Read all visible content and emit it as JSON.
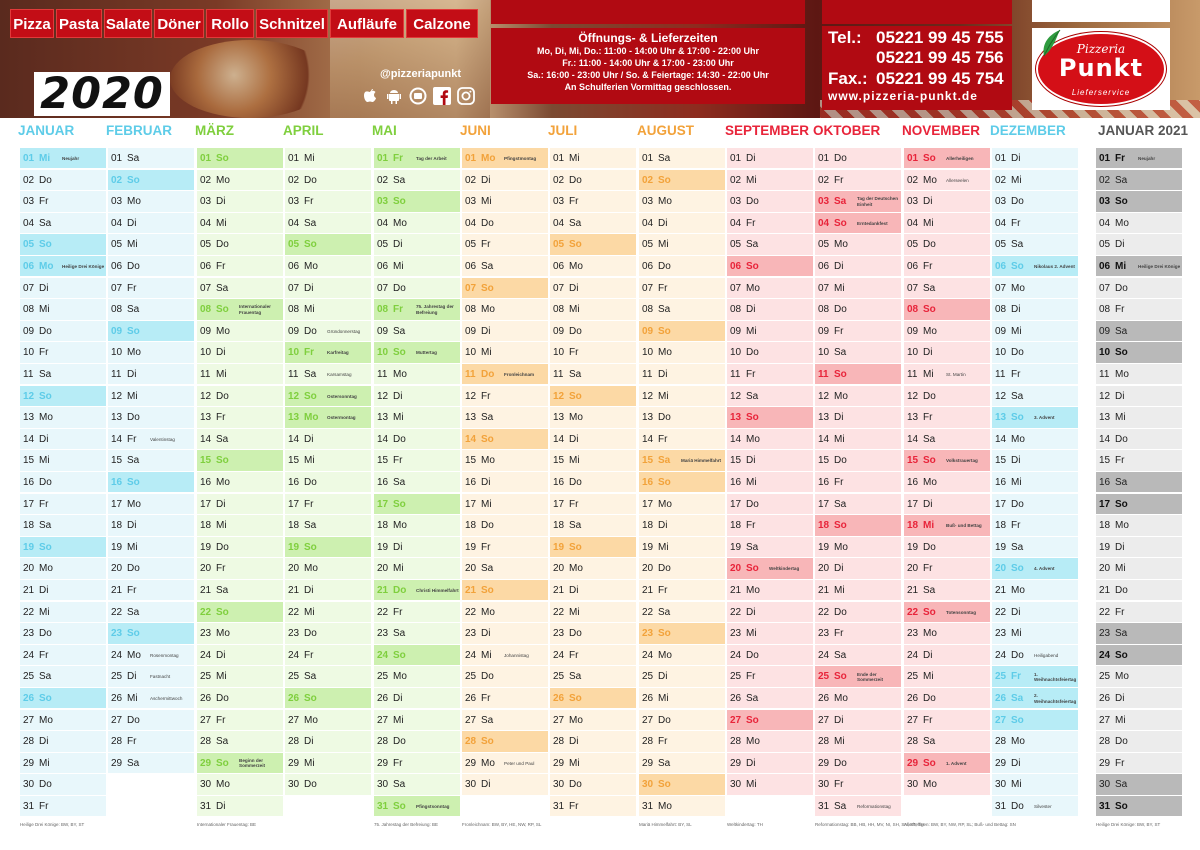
{
  "header": {
    "categories": [
      "Pizza",
      "Pasta",
      "Salate",
      "Döner",
      "Rollo",
      "Schnitzel",
      "Aufläufe",
      "Calzone"
    ],
    "year": "2020",
    "social_handle": "@pizzeriapunkt",
    "social_icons": [
      "apple-icon",
      "android-icon",
      "roundcube-icon",
      "facebook-icon",
      "instagram-icon"
    ],
    "hours": {
      "title": "Öffnungs- & Lieferzeiten",
      "lines": [
        "Mo, Di, Mi, Do.: 11:00 - 14:00 Uhr & 17:00 - 22:00 Uhr",
        "Fr.: 11:00 - 14:00 Uhr & 17:00 - 23:00 Uhr",
        "Sa.: 16:00 - 23:00 Uhr / So. & Feiertage: 14:30 - 22:00 Uhr",
        "An Schulferien Vormittag geschlossen."
      ]
    },
    "contact": {
      "tel_label": "Tel.:",
      "tel1": "05221 99 45 755",
      "tel2": "05221 99 45 756",
      "fax_label": "Fax.:",
      "fax": "05221 99 45 754",
      "web": "www.pizzeria-punkt.de"
    },
    "logo": {
      "top": "Pizzeria",
      "main": "Punkt",
      "bottom": "Lieferservice"
    }
  },
  "colors": {
    "brand_red": "#b10a12",
    "category_red": "#c30d16"
  },
  "calendar": {
    "months": [
      {
        "name": "JANUAR",
        "title_color": "#5ecce8",
        "base": "#e8f7fb",
        "accent": "#b7ecf6",
        "start": 2,
        "days": 31,
        "hcolor": "#5ecce8",
        "notes": {
          "1": "Neujahr",
          "6": "Heilige Drei Könige"
        },
        "holidays": [
          1,
          6
        ]
      },
      {
        "name": "FEBRUAR",
        "title_color": "#5ecce8",
        "base": "#e8f7fb",
        "accent": "#b7ecf6",
        "start": 5,
        "days": 29,
        "hcolor": "#5ecce8",
        "notes": {
          "14": "Valentinstag",
          "24": "Rosenmontag",
          "25": "Fastnacht",
          "26": "Aschermittwoch"
        },
        "holidays": []
      },
      {
        "name": "MÄRZ",
        "title_color": "#7fcf3e",
        "base": "#eefae3",
        "accent": "#cdf0b0",
        "start": 6,
        "days": 31,
        "hcolor": "#7fcf3e",
        "notes": {
          "8": "Internationaler Frauentag",
          "29": "Beginn der Sommerzeit"
        },
        "holidays": []
      },
      {
        "name": "APRIL",
        "title_color": "#7fcf3e",
        "base": "#eefae3",
        "accent": "#cdf0b0",
        "start": 2,
        "days": 30,
        "hcolor": "#7fcf3e",
        "notes": {
          "9": "Gründonnerstag",
          "10": "Karfreitag",
          "11": "Karsamstag",
          "12": "Ostersonntag",
          "13": "Ostermontag"
        },
        "holidays": [
          10,
          13
        ]
      },
      {
        "name": "MAI",
        "title_color": "#7fcf3e",
        "base": "#eefae3",
        "accent": "#cdf0b0",
        "start": 4,
        "days": 31,
        "hcolor": "#7fcf3e",
        "notes": {
          "1": "Tag der Arbeit",
          "8": "75. Jahrestag der Befreiung",
          "10": "Muttertag",
          "21": "Christi Himmelfahrt",
          "31": "Pfingstsonntag"
        },
        "holidays": [
          1,
          8,
          21
        ]
      },
      {
        "name": "JUNI",
        "title_color": "#f2a23a",
        "base": "#fef3e2",
        "accent": "#fcd9a5",
        "start": 0,
        "days": 30,
        "hcolor": "#f2a23a",
        "notes": {
          "1": "Pfingstmontag",
          "11": "Fronleichnam",
          "24": "Johannistag",
          "29": "Peter und Paul"
        },
        "holidays": [
          1,
          11
        ]
      },
      {
        "name": "JULI",
        "title_color": "#f2a23a",
        "base": "#fef3e2",
        "accent": "#fcd9a5",
        "start": 2,
        "days": 31,
        "hcolor": "#f2a23a",
        "notes": {},
        "holidays": []
      },
      {
        "name": "AUGUST",
        "title_color": "#f2a23a",
        "base": "#fef3e2",
        "accent": "#fcd9a5",
        "start": 5,
        "days": 31,
        "hcolor": "#f2a23a",
        "notes": {
          "15": "Mariä Himmelfahrt"
        },
        "holidays": [
          15
        ]
      },
      {
        "name": "SEPTEMBER",
        "title_color": "#e8243a",
        "base": "#fde2e3",
        "accent": "#f8b6b8",
        "start": 1,
        "days": 30,
        "hcolor": "#e8243a",
        "notes": {
          "20": "Weltkindertag"
        },
        "holidays": []
      },
      {
        "name": "OKTOBER",
        "title_color": "#e8243a",
        "base": "#fde2e3",
        "accent": "#f8b6b8",
        "start": 3,
        "days": 31,
        "hcolor": "#e8243a",
        "notes": {
          "3": "Tag der Deutschen Einheit",
          "4": "Erntedankfest",
          "25": "Ende der Sommerzeit",
          "31": "Reformationstag"
        },
        "holidays": [
          3
        ]
      },
      {
        "name": "NOVEMBER",
        "title_color": "#e8243a",
        "base": "#fde2e3",
        "accent": "#f8b6b8",
        "start": 6,
        "days": 30,
        "hcolor": "#e8243a",
        "notes": {
          "1": "Allerheiligen",
          "2": "Allerseelen",
          "11": "St. Martin",
          "15": "Volkstrauertag",
          "18": "Buß- und Bettag",
          "22": "Totensonntag",
          "29": "1. Advent"
        },
        "holidays": [
          1,
          18
        ]
      },
      {
        "name": "DEZEMBER",
        "title_color": "#5ecce8",
        "base": "#e8f7fb",
        "accent": "#b7ecf6",
        "start": 1,
        "days": 31,
        "hcolor": "#5ecce8",
        "notes": {
          "6": "Nikolaus 2. Advent",
          "13": "3. Advent",
          "20": "4. Advent",
          "24": "Heiligabend",
          "25": "1. Weihnachtsfeiertag",
          "26": "2. Weihnachtsfeiertag",
          "31": "Silvester"
        },
        "holidays": [
          25,
          26
        ]
      },
      {
        "name": "JANUAR 2021",
        "title_color": "#555555",
        "base": "#ececec",
        "accent": "#b9b9b9",
        "start": 4,
        "days": 31,
        "hcolor": "#111111",
        "notes": {
          "1": "Neujahr",
          "6": "Heilige Drei Könige"
        },
        "holidays": [
          1,
          6
        ]
      }
    ],
    "weekdays": [
      "Mo",
      "Di",
      "Mi",
      "Do",
      "Fr",
      "Sa",
      "So"
    ],
    "footnotes": [
      "Heilige Drei Könige: BW, BY, ST",
      "Internationaler Frauentag: BE",
      "75. Jahrestag der Befreiung: BE",
      "Fronleichnam: BW, BY, HE, NW, RP, SL",
      "Mariä Himmelfahrt: BY, SL",
      "Weltkindertag: TH",
      "Reformationstag: BB, HB, HH, MV, NI, SH, SN, ST, TH",
      "Allerheiligen: BW, BY, NW, RP, SL; Buß- und Bettag: SN",
      "Heilige Drei Könige: BW, BY, ST"
    ]
  }
}
